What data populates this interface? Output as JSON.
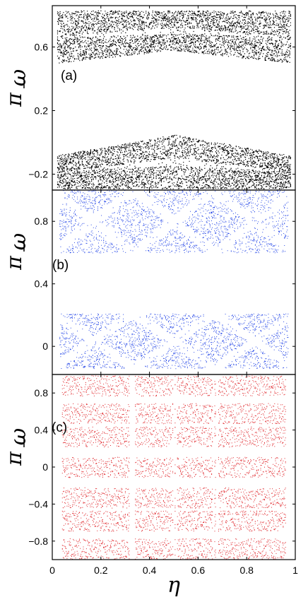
{
  "figure": {
    "xlabel": "η",
    "ylabel_numerator": "ω",
    "ylabel_denominator": "π"
  },
  "chart_data": [
    {
      "type": "scatter",
      "panel_label": "(a)",
      "color": "#000000",
      "xlim": [
        0,
        1
      ],
      "ylim": [
        -0.3,
        0.86
      ],
      "xticks": [
        0,
        0.2,
        0.4,
        0.6,
        0.8,
        1
      ],
      "yticks": [
        -0.2,
        0.2,
        0.6
      ],
      "ytick_labels": [
        "−0.2",
        "0.2",
        "0.6"
      ],
      "bands": [
        {
          "edge_center": 0.83,
          "edge_border": 0.83,
          "inner_center": 0.58,
          "inner_border": 0.5
        },
        {
          "edge_center": -0.29,
          "edge_border": -0.29,
          "inner_center": 0.05,
          "inner_border": -0.08
        }
      ]
    },
    {
      "type": "scatter",
      "panel_label": "(b)",
      "color": "#2b4ce8",
      "xlim": [
        0,
        1
      ],
      "ylim": [
        -0.18,
        1.0
      ],
      "xticks": [
        0,
        0.2,
        0.4,
        0.6,
        0.8,
        1
      ],
      "yticks": [
        0,
        0.4,
        0.8
      ],
      "ytick_labels": [
        "0",
        "0.4",
        "0.8"
      ],
      "periods": 3,
      "bands": [
        {
          "low": 0.6,
          "high": 1.0
        },
        {
          "low": -0.14,
          "high": 0.21
        }
      ]
    },
    {
      "type": "scatter",
      "panel_label": "(c)",
      "color": "#e0262b",
      "xlim": [
        0,
        1
      ],
      "ylim": [
        -1.0,
        1.0
      ],
      "xticks": [
        0,
        0.2,
        0.4,
        0.6,
        0.8,
        1
      ],
      "xtick_labels": [
        "0",
        "0.2",
        "0.4",
        "0.6",
        "0.8",
        "1"
      ],
      "yticks": [
        -0.8,
        -0.4,
        0,
        0.4,
        0.8
      ],
      "ytick_labels": [
        "−0.8",
        "−0.4",
        "0",
        "0.4",
        "0.8"
      ],
      "band_centers": [
        0.88,
        0.58,
        0.33,
        0.0,
        -0.33,
        -0.58,
        -0.88
      ]
    }
  ]
}
